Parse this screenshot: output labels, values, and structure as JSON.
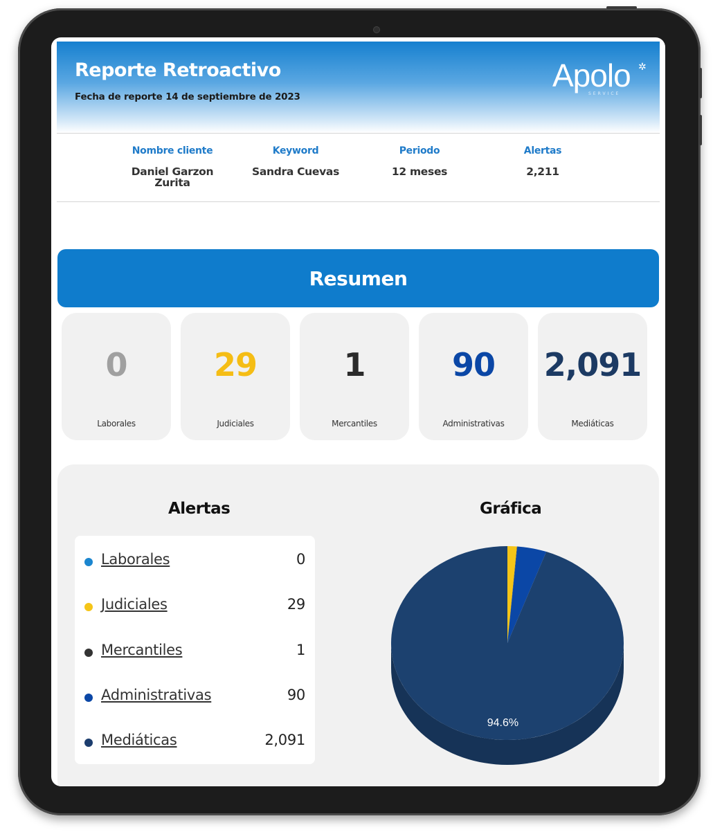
{
  "header": {
    "title": "Reporte Retroactivo",
    "date": "Fecha de reporte 14 de septiembre de 2023",
    "logo_text": "Apolo",
    "logo_sub": "SERVICE"
  },
  "info": [
    {
      "label": "Nombre cliente",
      "value": "Daniel Garzon Zurita"
    },
    {
      "label": "Keyword",
      "value": "Sandra Cuevas"
    },
    {
      "label": "Periodo",
      "value": "12 meses"
    },
    {
      "label": "Alertas",
      "value": "2,211"
    }
  ],
  "summary": {
    "title": "Resumen",
    "cards": [
      {
        "value": "0",
        "label": "Laborales",
        "color": "#a0a0a0"
      },
      {
        "value": "29",
        "label": "Judiciales",
        "color": "#f5bd15"
      },
      {
        "value": "1",
        "label": "Mercantiles",
        "color": "#2b2b2b"
      },
      {
        "value": "90",
        "label": "Administrativas",
        "color": "#0b47a6"
      },
      {
        "value": "2,091",
        "label": "Mediáticas",
        "color": "#1c3a63"
      }
    ]
  },
  "alerts": {
    "title": "Alertas",
    "items": [
      {
        "label": "Laborales",
        "value": "0",
        "color": "#1b86cf"
      },
      {
        "label": "Judiciales",
        "value": "29",
        "color": "#f5c518"
      },
      {
        "label": "Mercantiles",
        "value": "1",
        "color": "#333333"
      },
      {
        "label": "Administrativas",
        "value": "90",
        "color": "#0b47a6"
      },
      {
        "label": "Mediáticas",
        "value": "2,091",
        "color": "#1c3d6e"
      }
    ]
  },
  "chart_title": "Gráfica",
  "chart_data": {
    "type": "pie",
    "title": "Gráfica",
    "labels": [
      "Laborales",
      "Judiciales",
      "Mercantiles",
      "Administrativas",
      "Mediáticas"
    ],
    "values": [
      0,
      29,
      1,
      90,
      2091
    ],
    "colors": [
      "#1b86cf",
      "#f5c518",
      "#333333",
      "#0b47a6",
      "#1c416f"
    ],
    "data_labels": [
      "",
      "",
      "",
      "",
      "94.6%"
    ]
  }
}
